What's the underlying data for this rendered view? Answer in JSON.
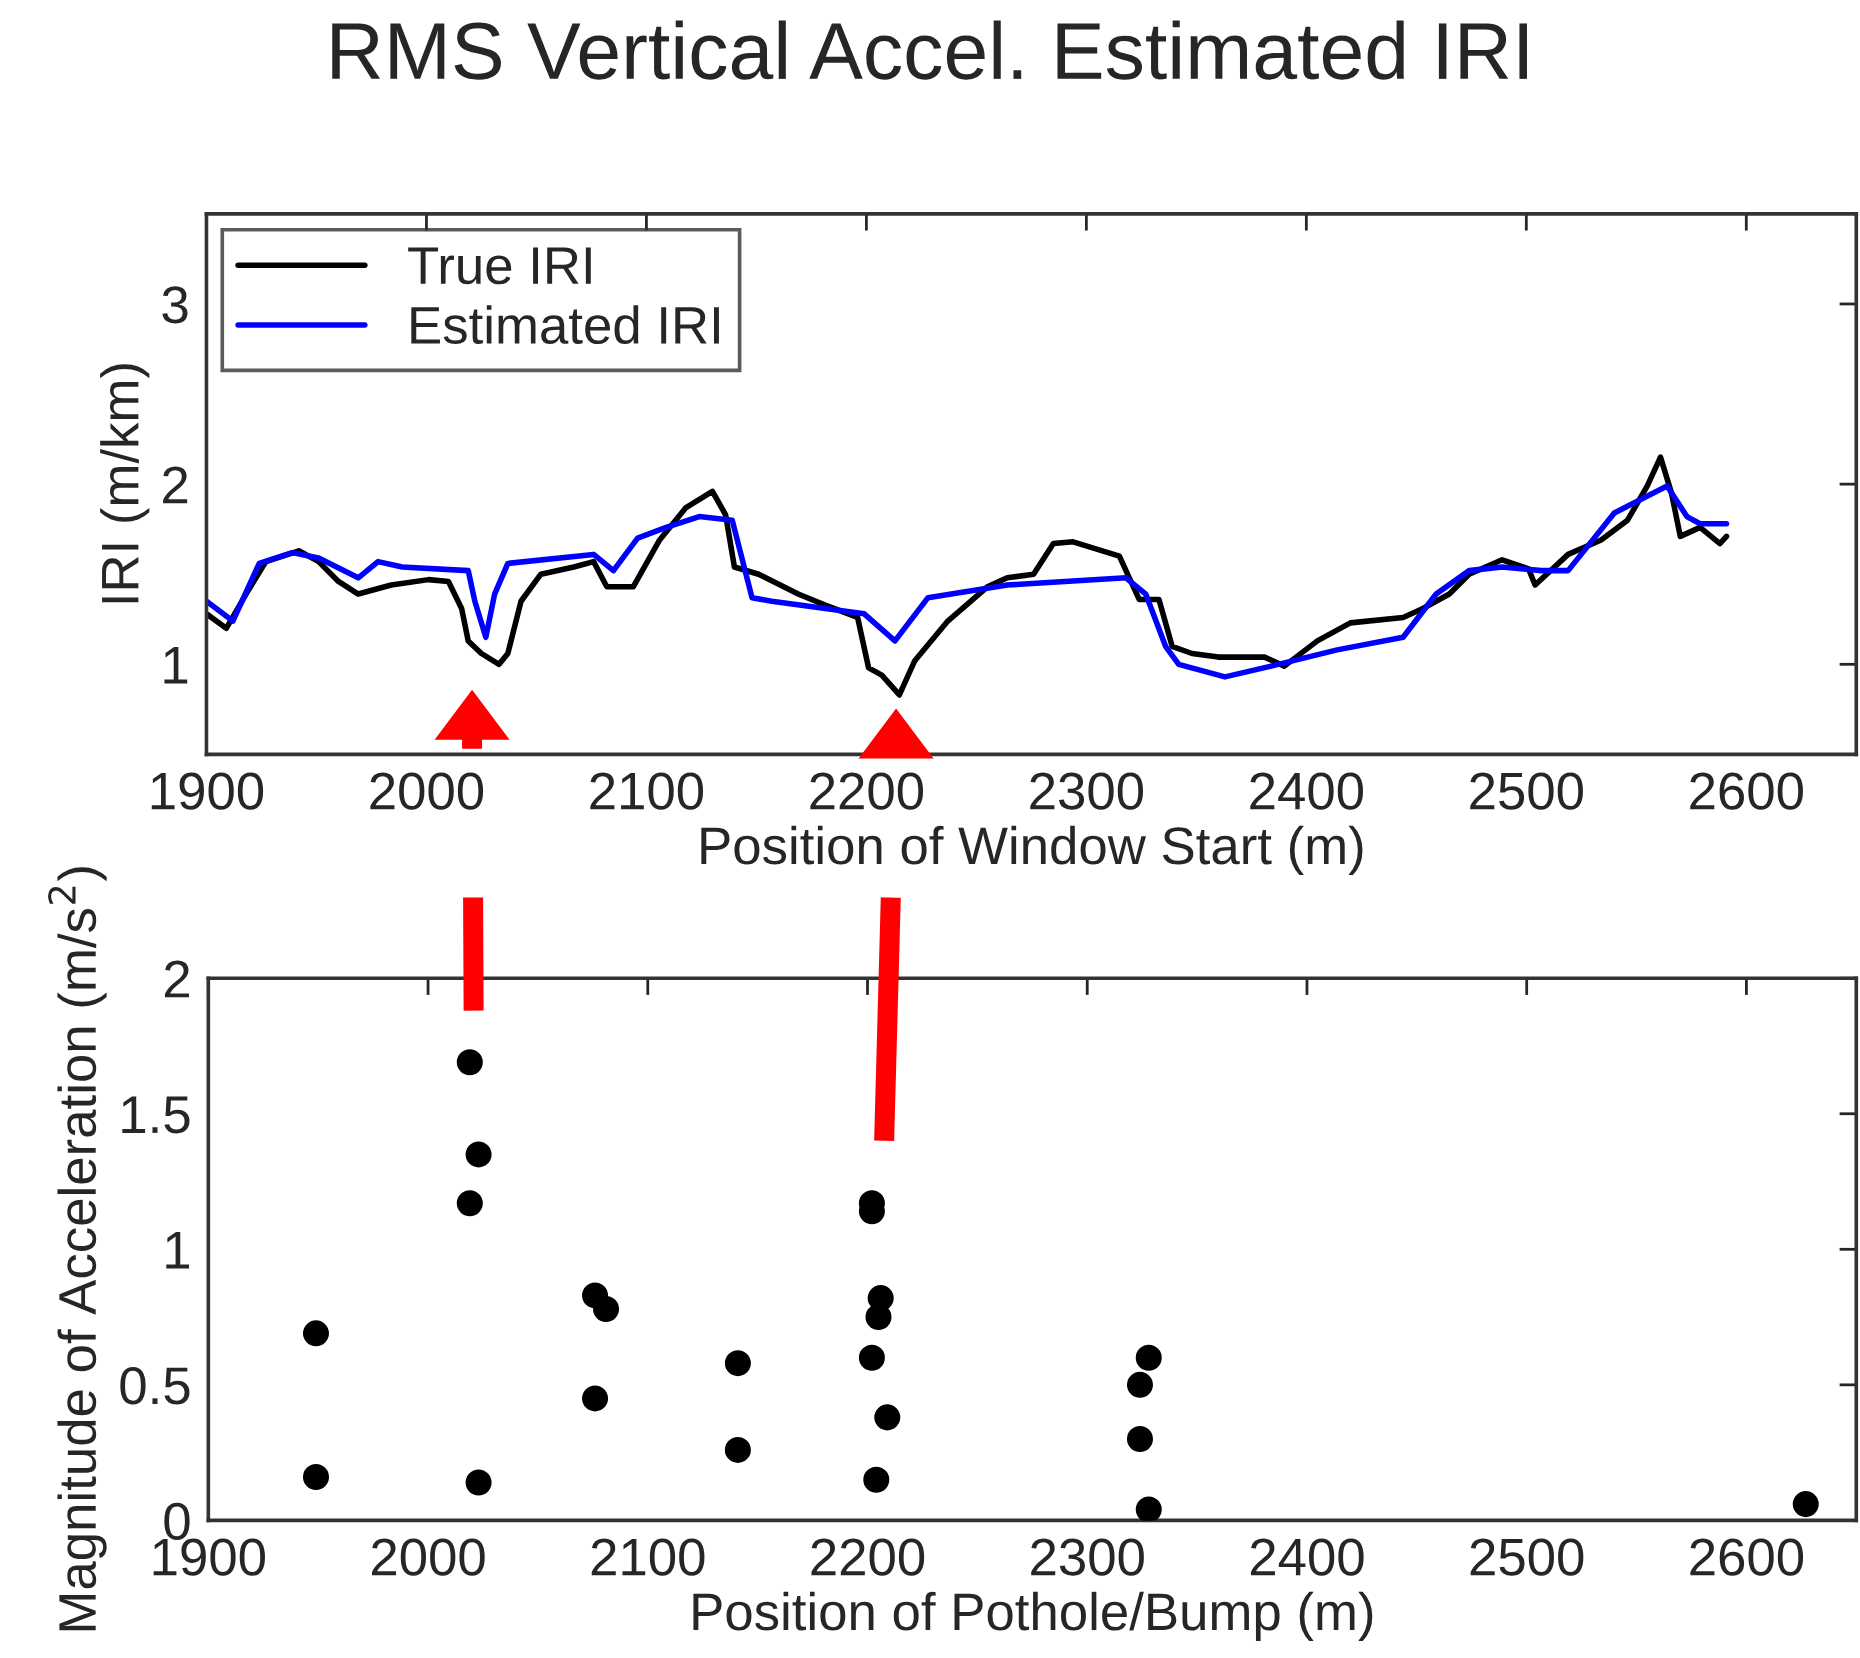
{
  "chart_data": [
    {
      "type": "line",
      "title": "RMS Vertical Accel. Estimated IRI",
      "xlabel": "Position of Window Start (m)",
      "ylabel": "IRI (m/km)",
      "xlim": [
        1900,
        2650
      ],
      "xticks": [
        1900,
        2000,
        2100,
        2200,
        2300,
        2400,
        2500,
        2600
      ],
      "ylim": [
        0.5,
        3.5
      ],
      "yticks": [
        1,
        2,
        3
      ],
      "grid": false,
      "legend": "top left",
      "marker": "none",
      "line_style": "solid",
      "series": [
        {
          "name": "True IRI",
          "color": "#000000",
          "x": [
            1900,
            1909,
            1918,
            1927,
            1942,
            1951,
            1960,
            1969,
            1984,
            2001,
            2010,
            2016,
            2019,
            2025,
            2033,
            2037,
            2043,
            2052,
            2067,
            2076,
            2082,
            2094,
            2106,
            2118,
            2130,
            2136,
            2140,
            2151,
            2169,
            2181,
            2196,
            2201,
            2207,
            2215,
            2222,
            2237,
            2255,
            2264,
            2276,
            2285,
            2294,
            2315,
            2324,
            2333,
            2339,
            2348,
            2360,
            2381,
            2390,
            2405,
            2420,
            2444,
            2453,
            2465,
            2474,
            2489,
            2501,
            2504,
            2519,
            2534,
            2546,
            2555,
            2561,
            2566,
            2570,
            2579,
            2588,
            2591
          ],
          "values": [
            1.28,
            1.2,
            1.39,
            1.57,
            1.63,
            1.57,
            1.46,
            1.39,
            1.44,
            1.47,
            1.46,
            1.31,
            1.13,
            1.06,
            1.0,
            1.06,
            1.35,
            1.5,
            1.54,
            1.57,
            1.43,
            1.43,
            1.69,
            1.87,
            1.96,
            1.83,
            1.54,
            1.5,
            1.39,
            1.33,
            1.26,
            0.98,
            0.94,
            0.83,
            1.02,
            1.24,
            1.43,
            1.48,
            1.5,
            1.67,
            1.68,
            1.6,
            1.36,
            1.36,
            1.1,
            1.06,
            1.04,
            1.04,
            0.99,
            1.13,
            1.23,
            1.26,
            1.31,
            1.39,
            1.5,
            1.58,
            1.53,
            1.44,
            1.61,
            1.69,
            1.8,
            1.99,
            2.15,
            1.95,
            1.71,
            1.76,
            1.67,
            1.71
          ]
        },
        {
          "name": "Estimated IRI",
          "color": "#0000ff",
          "x": [
            1900,
            1912,
            1924,
            1939,
            1951,
            1969,
            1978,
            1989,
            2019,
            2022,
            2027,
            2031,
            2037,
            2076,
            2085,
            2096,
            2109,
            2124,
            2139,
            2148,
            2157,
            2199,
            2213,
            2228,
            2264,
            2318,
            2327,
            2336,
            2342,
            2363,
            2384,
            2414,
            2444,
            2459,
            2474,
            2489,
            2507,
            2519,
            2540,
            2564,
            2573,
            2579,
            2591
          ],
          "values": [
            1.35,
            1.24,
            1.56,
            1.62,
            1.59,
            1.48,
            1.57,
            1.54,
            1.52,
            1.35,
            1.15,
            1.39,
            1.56,
            1.61,
            1.52,
            1.7,
            1.76,
            1.82,
            1.8,
            1.37,
            1.35,
            1.28,
            1.13,
            1.37,
            1.44,
            1.48,
            1.39,
            1.1,
            1.0,
            0.93,
            0.99,
            1.08,
            1.15,
            1.39,
            1.52,
            1.54,
            1.52,
            1.52,
            1.84,
            1.99,
            1.82,
            1.78,
            1.78
          ]
        }
      ]
    },
    {
      "type": "scatter",
      "xlabel": "Position of Pothole/Bump (m)",
      "ylabel": "Magnitude of Acceleration (m/s$^{2}$)",
      "xlim": [
        1900,
        2650
      ],
      "xticks": [
        1900,
        2000,
        2100,
        2200,
        2300,
        2400,
        2500,
        2600
      ],
      "ylim": [
        0,
        2
      ],
      "yticks": [
        0,
        0.5,
        1,
        1.5,
        2
      ],
      "grid": false,
      "marker": "circle",
      "series": [
        {
          "color": "#000000",
          "x": [
            1949,
            1949,
            2019,
            2023,
            2019,
            2023,
            2076,
            2081,
            2076,
            2141,
            2141,
            2202,
            2202,
            2206,
            2205,
            2202,
            2209,
            2204,
            2324,
            2328,
            2324,
            2328,
            2627
          ],
          "values": [
            0.69,
            0.16,
            1.69,
            1.35,
            1.17,
            0.14,
            0.83,
            0.78,
            0.45,
            0.58,
            0.26,
            1.17,
            1.14,
            0.82,
            0.75,
            0.6,
            0.38,
            0.15,
            0.5,
            0.6,
            0.3,
            0.04,
            0.06
          ]
        }
      ]
    }
  ]
}
